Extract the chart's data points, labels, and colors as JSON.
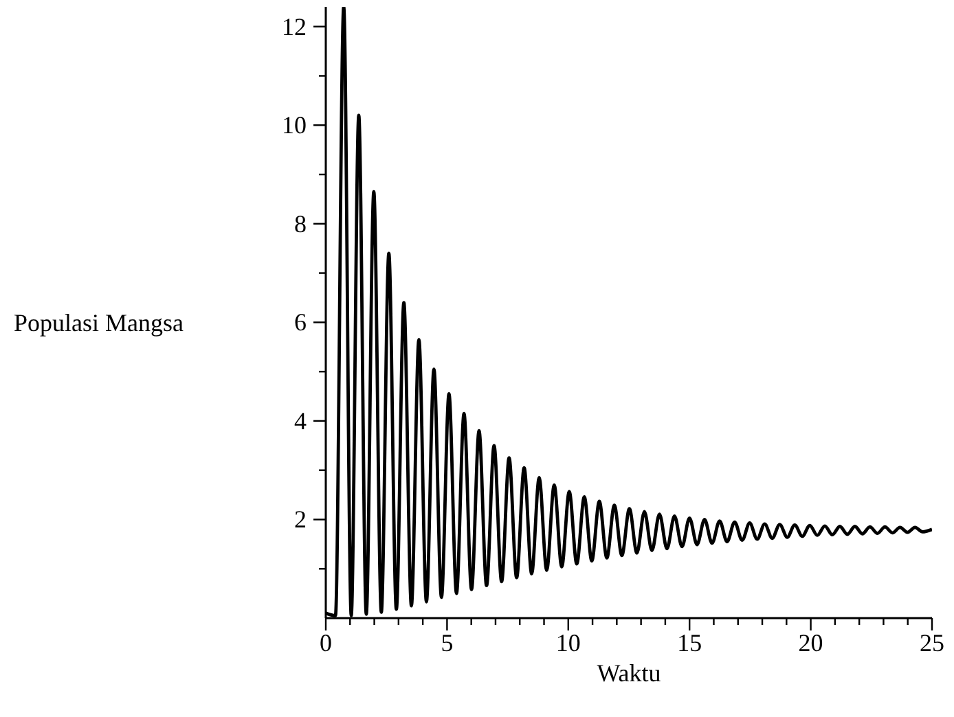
{
  "chart_data": {
    "type": "line",
    "xlabel": "Waktu",
    "ylabel": "Populasi Mangsa",
    "color": "#000000",
    "marker": "none",
    "line_style": "solid",
    "xlim": [
      0,
      25
    ],
    "ylim": [
      0,
      12.4
    ],
    "xticks": [
      0,
      {
        "value": 1,
        "label": null
      },
      {
        "value": 2,
        "label": null
      },
      {
        "value": 3,
        "label": null
      },
      {
        "value": 4,
        "label": null
      },
      5,
      {
        "value": 6,
        "label": null
      },
      {
        "value": 7,
        "label": null
      },
      {
        "value": 8,
        "label": null
      },
      {
        "value": 9,
        "label": null
      },
      10,
      {
        "value": 11,
        "label": null
      },
      {
        "value": 12,
        "label": null
      },
      {
        "value": 13,
        "label": null
      },
      {
        "value": 14,
        "label": null
      },
      15,
      {
        "value": 16,
        "label": null
      },
      {
        "value": 17,
        "label": null
      },
      {
        "value": 18,
        "label": null
      },
      {
        "value": 19,
        "label": null
      },
      20,
      {
        "value": 21,
        "label": null
      },
      {
        "value": 22,
        "label": null
      },
      {
        "value": 23,
        "label": null
      },
      {
        "value": 24,
        "label": null
      },
      25
    ],
    "yticks": [
      {
        "value": 1,
        "label": null
      },
      2,
      {
        "value": 3,
        "label": null
      },
      4,
      {
        "value": 5,
        "label": null
      },
      6,
      {
        "value": 7,
        "label": null
      },
      8,
      {
        "value": 9,
        "label": null
      },
      10,
      {
        "value": 11,
        "label": null
      },
      12
    ],
    "x": [
      0,
      0.4,
      0.74,
      1.05,
      1.36,
      1.67,
      1.98,
      2.29,
      2.6,
      2.91,
      3.22,
      3.53,
      3.84,
      4.15,
      4.46,
      4.77,
      5.08,
      5.39,
      5.7,
      6.01,
      6.32,
      6.63,
      6.94,
      7.25,
      7.56,
      7.87,
      8.18,
      8.49,
      8.8,
      9.11,
      9.42,
      9.73,
      10.04,
      10.35,
      10.66,
      10.97,
      11.28,
      11.59,
      11.9,
      12.21,
      12.52,
      12.83,
      13.14,
      13.45,
      13.76,
      14.07,
      14.38,
      14.69,
      15,
      15.31,
      15.62,
      15.93,
      16.24,
      16.55,
      16.86,
      17.17,
      17.48,
      17.79,
      18.1,
      18.41,
      18.72,
      19.03,
      19.34,
      19.65,
      19.96,
      20.27,
      20.58,
      20.89,
      21.2,
      21.51,
      21.82,
      22.13,
      22.44,
      22.75,
      23.06,
      23.37,
      23.68,
      23.99,
      24.3,
      24.61,
      25
    ],
    "values": [
      0.1,
      0.05,
      12.4,
      0.05,
      10.2,
      0.08,
      8.65,
      0.12,
      7.4,
      0.18,
      6.4,
      0.25,
      5.65,
      0.33,
      5.05,
      0.42,
      4.55,
      0.5,
      4.15,
      0.58,
      3.8,
      0.66,
      3.5,
      0.74,
      3.25,
      0.82,
      3.05,
      0.9,
      2.85,
      0.97,
      2.7,
      1.04,
      2.57,
      1.1,
      2.46,
      1.16,
      2.37,
      1.22,
      2.29,
      1.27,
      2.22,
      1.32,
      2.16,
      1.37,
      2.11,
      1.41,
      2.07,
      1.45,
      2.03,
      1.49,
      2,
      1.52,
      1.97,
      1.55,
      1.95,
      1.58,
      1.93,
      1.6,
      1.91,
      1.62,
      1.9,
      1.64,
      1.89,
      1.66,
      1.88,
      1.68,
      1.87,
      1.69,
      1.86,
      1.7,
      1.86,
      1.71,
      1.85,
      1.72,
      1.85,
      1.73,
      1.84,
      1.74,
      1.84,
      1.75,
      1.8
    ]
  }
}
